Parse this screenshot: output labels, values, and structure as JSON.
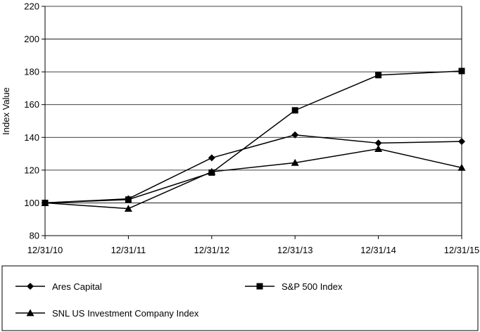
{
  "chart_data": {
    "type": "line",
    "ylabel": "Index Value",
    "ylim": [
      80,
      220
    ],
    "yticks": [
      80,
      100,
      120,
      140,
      160,
      180,
      200,
      220
    ],
    "categories": [
      "12/31/10",
      "12/31/11",
      "12/31/12",
      "12/31/13",
      "12/31/14",
      "12/31/15"
    ],
    "grid": "horizontal",
    "legend_placement": "bottom",
    "series": [
      {
        "name": "Ares Capital",
        "marker": "diamond",
        "color": "#000000",
        "values": [
          100,
          102.5,
          127.5,
          141.5,
          136.5,
          137.5
        ]
      },
      {
        "name": "S&P 500 Index",
        "marker": "square",
        "color": "#000000",
        "values": [
          100,
          102,
          118.5,
          156.5,
          178,
          180.5
        ]
      },
      {
        "name": "SNL US Investment Company Index",
        "marker": "triangle",
        "color": "#000000",
        "values": [
          100,
          96.5,
          119,
          124.5,
          133,
          121.5
        ]
      }
    ]
  }
}
